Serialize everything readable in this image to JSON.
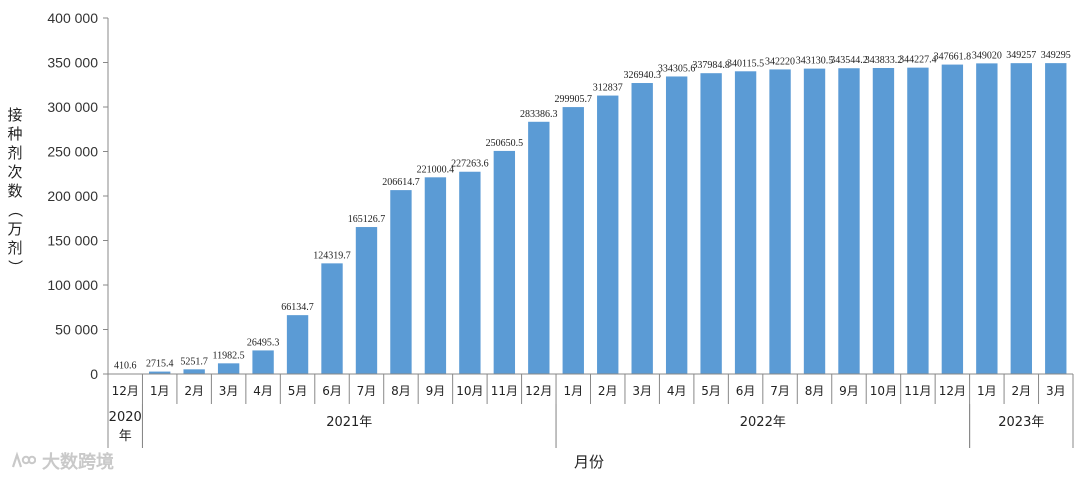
{
  "chart_data": {
    "type": "bar",
    "title": "",
    "xlabel": "月份",
    "ylabel": "接种剂次数（万剂）",
    "ylim": [
      0,
      400000
    ],
    "yticks": [
      "0",
      "50 000",
      "100 000",
      "150 000",
      "200 000",
      "250 000",
      "300 000",
      "350 000",
      "400 000"
    ],
    "ytick_values": [
      0,
      50000,
      100000,
      150000,
      200000,
      250000,
      300000,
      350000,
      400000
    ],
    "categories": [
      "12月",
      "1月",
      "2月",
      "3月",
      "4月",
      "5月",
      "6月",
      "7月",
      "8月",
      "9月",
      "10月",
      "11月",
      "12月",
      "1月",
      "2月",
      "3月",
      "4月",
      "5月",
      "6月",
      "7月",
      "8月",
      "9月",
      "10月",
      "11月",
      "12月",
      "1月",
      "2月",
      "3月"
    ],
    "values": [
      410.6,
      2715.4,
      5251.7,
      11982.5,
      26495.3,
      66134.7,
      124319.7,
      165126.7,
      206614.7,
      221000.4,
      227263.6,
      250650.5,
      283386.3,
      299905.7,
      312837,
      326940.3,
      334305.6,
      337984.8,
      340115.5,
      342220,
      343130.5,
      343544.2,
      343833.2,
      344227.4,
      347661.8,
      349020,
      349257,
      349295
    ],
    "data_labels": [
      "410.6",
      "2715.4",
      "5251.7",
      "11982.5",
      "26495.3",
      "66134.7",
      "124319.7",
      "165126.7",
      "206614.7",
      "221000.4",
      "227263.6",
      "250650.5",
      "283386.3",
      "299905.7",
      "312837",
      "326940.3",
      "334305.6",
      "337984.8",
      "340115.5",
      "342220",
      "343130.5",
      "343544.2",
      "343833.2",
      "344227.4",
      "347661.8",
      "349020",
      "349257",
      "349295"
    ],
    "year_groups": [
      {
        "label": "2020年",
        "start": 0,
        "end": 0
      },
      {
        "label": "2021年",
        "start": 1,
        "end": 12
      },
      {
        "label": "2022年",
        "start": 13,
        "end": 24
      },
      {
        "label": "2023年",
        "start": 25,
        "end": 27
      }
    ],
    "bar_color": "#5b9bd5",
    "grid": false,
    "legend": "none"
  },
  "watermark": {
    "text": "大数跨境"
  }
}
